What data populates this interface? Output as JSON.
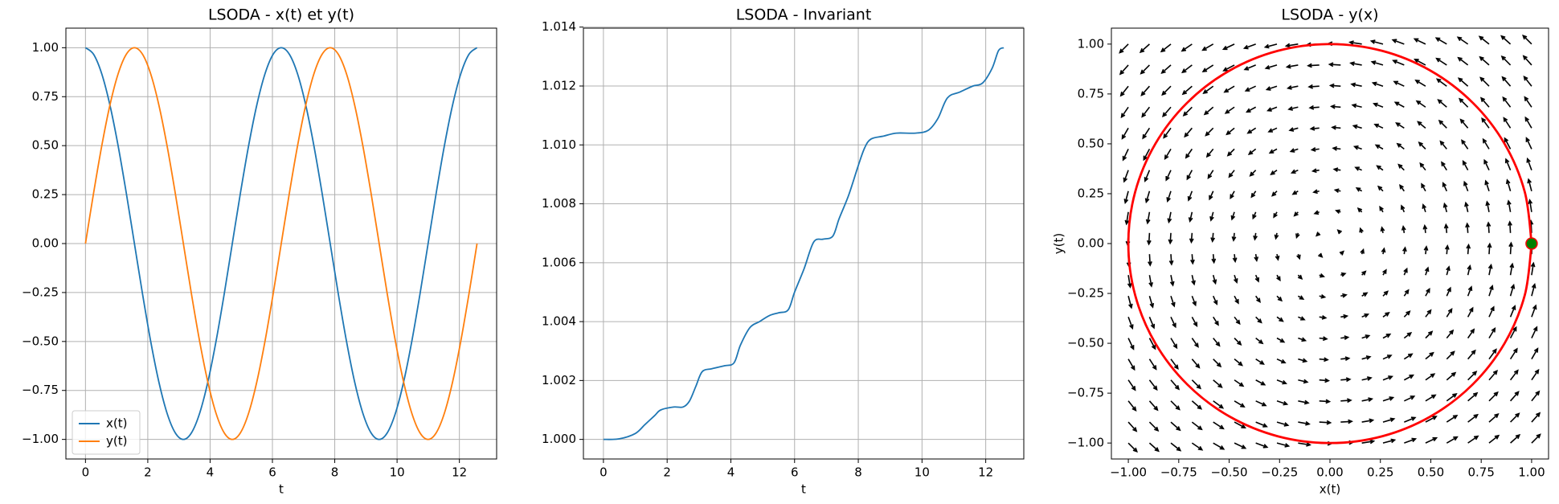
{
  "chart_data": [
    {
      "type": "line",
      "title": "LSODA - x(t) et y(t)",
      "xlabel": "t",
      "x": [
        0,
        0.262,
        0.524,
        0.785,
        1.047,
        1.309,
        1.571,
        1.833,
        2.094,
        2.356,
        2.618,
        2.88,
        3.142,
        3.403,
        3.665,
        3.927,
        4.189,
        4.451,
        4.712,
        4.974,
        5.236,
        5.498,
        5.76,
        6.021,
        6.283,
        6.545,
        6.807,
        7.069,
        7.33,
        7.592,
        7.854,
        8.116,
        8.378,
        8.639,
        8.901,
        9.163,
        9.425,
        9.687,
        9.948,
        10.21,
        10.472,
        10.734,
        10.996,
        11.257,
        11.519,
        11.781,
        12.043,
        12.305,
        12.566
      ],
      "series": [
        {
          "name": "x(t)",
          "color": "#1f77b4",
          "values": [
            1,
            0.966,
            0.866,
            0.707,
            0.5,
            0.259,
            0,
            -0.259,
            -0.5,
            -0.707,
            -0.866,
            -0.966,
            -1,
            -0.966,
            -0.866,
            -0.707,
            -0.5,
            -0.259,
            0,
            0.259,
            0.5,
            0.707,
            0.866,
            0.966,
            1,
            0.966,
            0.866,
            0.707,
            0.5,
            0.259,
            0,
            -0.259,
            -0.5,
            -0.707,
            -0.866,
            -0.966,
            -1,
            -0.966,
            -0.866,
            -0.707,
            -0.5,
            -0.259,
            0,
            0.259,
            0.5,
            0.707,
            0.866,
            0.966,
            1
          ]
        },
        {
          "name": "y(t)",
          "color": "#ff7f0e",
          "values": [
            0,
            0.259,
            0.5,
            0.707,
            0.866,
            0.966,
            1,
            0.966,
            0.866,
            0.707,
            0.5,
            0.259,
            0,
            -0.259,
            -0.5,
            -0.707,
            -0.866,
            -0.966,
            -1,
            -0.966,
            -0.866,
            -0.707,
            -0.5,
            -0.259,
            0,
            0.259,
            0.5,
            0.707,
            0.866,
            0.966,
            1,
            0.966,
            0.866,
            0.707,
            0.5,
            0.259,
            0,
            -0.259,
            -0.5,
            -0.707,
            -0.866,
            -0.966,
            -1,
            -0.966,
            -0.866,
            -0.707,
            -0.5,
            -0.259,
            0
          ]
        }
      ],
      "xlim": [
        -0.628,
        13.195
      ],
      "xticks": [
        0,
        2,
        4,
        6,
        8,
        10,
        12
      ],
      "ylim": [
        -1.1,
        1.1
      ],
      "yticks": [
        {
          "value": -1,
          "label": "−1.00"
        },
        {
          "value": -0.75,
          "label": "−0.75"
        },
        {
          "value": -0.5,
          "label": "−0.50"
        },
        {
          "value": -0.25,
          "label": "−0.25"
        },
        {
          "value": 0,
          "label": "0.00"
        },
        {
          "value": 0.25,
          "label": "0.25"
        },
        {
          "value": 0.5,
          "label": "0.50"
        },
        {
          "value": 0.75,
          "label": "0.75"
        },
        {
          "value": 1,
          "label": "1.00"
        }
      ],
      "grid": true,
      "legend": "lower left"
    },
    {
      "type": "line",
      "title": "LSODA - Invariant",
      "xlabel": "t",
      "x": [
        0,
        0.5,
        1.0,
        1.3,
        1.6,
        1.8,
        2.2,
        2.5,
        2.7,
        2.9,
        3.1,
        3.4,
        3.8,
        4.1,
        4.3,
        4.6,
        4.9,
        5.2,
        5.5,
        5.8,
        6.0,
        6.3,
        6.6,
        6.9,
        7.2,
        7.4,
        7.7,
        8.0,
        8.2,
        8.4,
        8.8,
        9.2,
        9.8,
        10.2,
        10.5,
        10.8,
        11.2,
        11.6,
        11.9,
        12.2,
        12.4,
        12.566
      ],
      "series": [
        {
          "name": null,
          "color": "#1f77b4",
          "values": [
            1.0,
            1.00002,
            1.0002,
            1.0005,
            1.0008,
            1.001,
            1.0011,
            1.0011,
            1.0013,
            1.0018,
            1.0023,
            1.0024,
            1.0025,
            1.0026,
            1.0032,
            1.0038,
            1.004,
            1.0042,
            1.0043,
            1.0044,
            1.005,
            1.0058,
            1.0067,
            1.0068,
            1.0069,
            1.0075,
            1.0083,
            1.0093,
            1.0099,
            1.0102,
            1.0103,
            1.0104,
            1.0104,
            1.0105,
            1.0109,
            1.0116,
            1.0118,
            1.012,
            1.0121,
            1.0126,
            1.0132,
            1.0133
          ]
        }
      ],
      "xlim": [
        -0.628,
        13.195
      ],
      "xticks": [
        0,
        2,
        4,
        6,
        8,
        10,
        12
      ],
      "ylim": [
        0.999335,
        1.013965
      ],
      "yticks": [
        {
          "value": 1.0,
          "label": "1.000"
        },
        {
          "value": 1.002,
          "label": "1.002"
        },
        {
          "value": 1.004,
          "label": "1.004"
        },
        {
          "value": 1.006,
          "label": "1.006"
        },
        {
          "value": 1.008,
          "label": "1.008"
        },
        {
          "value": 1.01,
          "label": "1.010"
        },
        {
          "value": 1.012,
          "label": "1.012"
        },
        {
          "value": 1.014,
          "label": "1.014"
        }
      ],
      "grid": true
    },
    {
      "type": "quiver",
      "title": "LSODA - y(x)",
      "xlabel": "x(t)",
      "ylabel": "y(t)",
      "quiver": {
        "x": [
          -1,
          -0.895,
          -0.789,
          -0.684,
          -0.579,
          -0.474,
          -0.368,
          -0.263,
          -0.158,
          -0.053,
          0.053,
          0.158,
          0.263,
          0.368,
          0.474,
          0.579,
          0.684,
          0.789,
          0.895,
          1
        ],
        "y": [
          -1,
          -0.895,
          -0.789,
          -0.684,
          -0.579,
          -0.474,
          -0.368,
          -0.263,
          -0.158,
          -0.053,
          0.053,
          0.158,
          0.263,
          0.368,
          0.474,
          0.579,
          0.684,
          0.789,
          0.895,
          1
        ],
        "color": "black"
      },
      "trajectory": {
        "x": [
          1,
          0.966,
          0.866,
          0.707,
          0.5,
          0.259,
          0,
          -0.259,
          -0.5,
          -0.707,
          -0.866,
          -0.966,
          -1,
          -0.966,
          -0.866,
          -0.707,
          -0.5,
          -0.259,
          0,
          0.259,
          0.5,
          0.707,
          0.866,
          0.966,
          1
        ],
        "y": [
          0,
          0.259,
          0.5,
          0.707,
          0.866,
          0.966,
          1,
          0.966,
          0.866,
          0.707,
          0.5,
          0.259,
          0,
          -0.259,
          -0.5,
          -0.707,
          -0.866,
          -0.966,
          -1,
          -0.966,
          -0.866,
          -0.707,
          -0.5,
          -0.259,
          0
        ],
        "color": "red"
      },
      "start": {
        "x": 1,
        "y": 0,
        "color": "green",
        "edgecolor": "red"
      },
      "xlim": [
        -1.084,
        1.084
      ],
      "ylim": [
        -1.08,
        1.08
      ],
      "xticks": [
        {
          "value": -1,
          "label": "−1.00"
        },
        {
          "value": -0.75,
          "label": "−0.75"
        },
        {
          "value": -0.5,
          "label": "−0.50"
        },
        {
          "value": -0.25,
          "label": "−0.25"
        },
        {
          "value": 0,
          "label": "0.00"
        },
        {
          "value": 0.25,
          "label": "0.25"
        },
        {
          "value": 0.5,
          "label": "0.50"
        },
        {
          "value": 0.75,
          "label": "0.75"
        },
        {
          "value": 1,
          "label": "1.00"
        }
      ],
      "yticks": [
        {
          "value": -1,
          "label": "−1.00"
        },
        {
          "value": -0.75,
          "label": "−0.75"
        },
        {
          "value": -0.5,
          "label": "−0.50"
        },
        {
          "value": -0.25,
          "label": "−0.25"
        },
        {
          "value": 0,
          "label": "0.00"
        },
        {
          "value": 0.25,
          "label": "0.25"
        },
        {
          "value": 0.5,
          "label": "0.50"
        },
        {
          "value": 0.75,
          "label": "0.75"
        },
        {
          "value": 1,
          "label": "1.00"
        }
      ],
      "grid": false
    }
  ]
}
